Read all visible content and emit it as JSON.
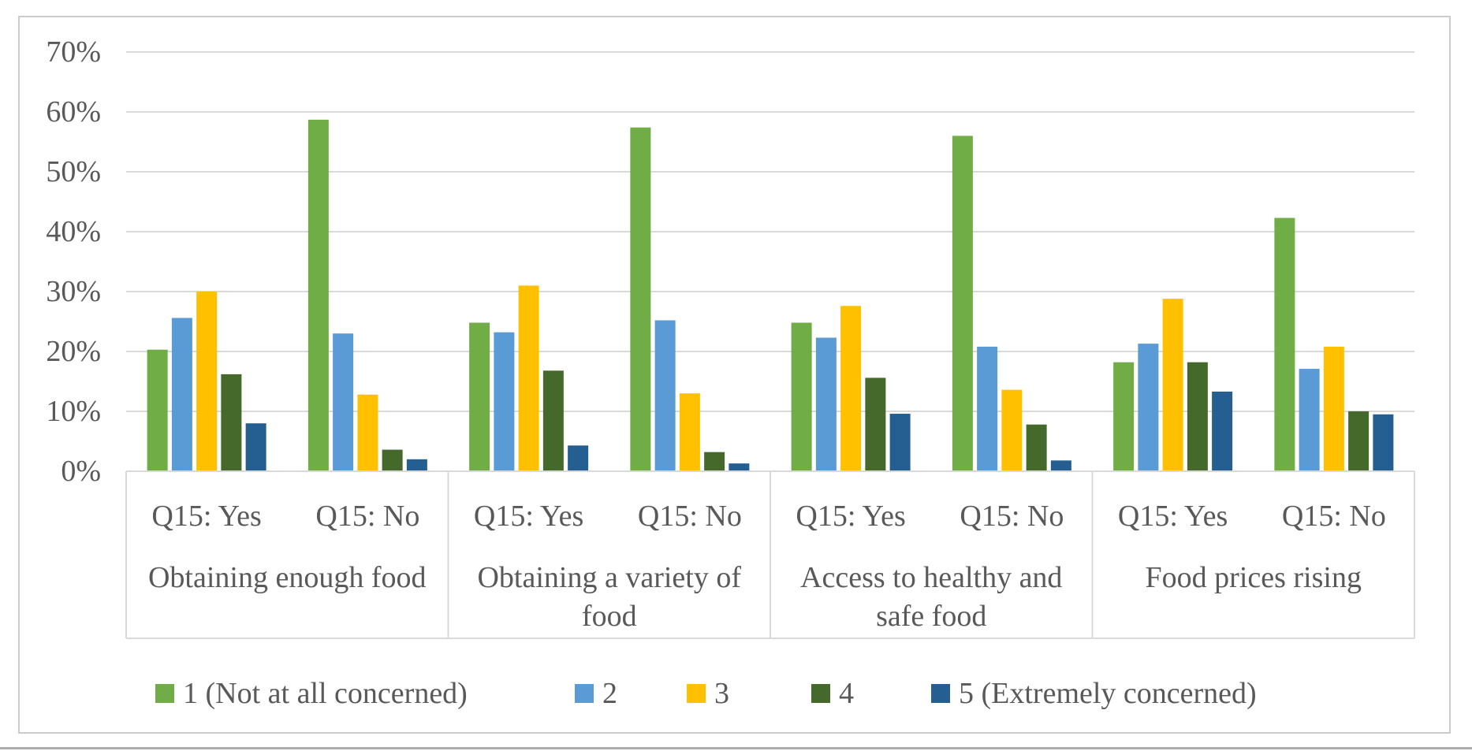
{
  "figure": {
    "kind": "grouped-bar-chart-figure"
  },
  "chart_data": {
    "type": "bar",
    "title": "",
    "xlabel": "",
    "ylabel": "",
    "y_axis": {
      "min": 0,
      "max": 70,
      "step": 10,
      "unit": "%",
      "ticks": [
        "0%",
        "10%",
        "20%",
        "30%",
        "40%",
        "50%",
        "60%",
        "70%"
      ]
    },
    "grid": true,
    "legend_position": "bottom",
    "groups": [
      {
        "label": "Obtaining enough food",
        "label_lines": [
          "Obtaining enough food"
        ]
      },
      {
        "label": "Obtaining a variety of food",
        "label_lines": [
          "Obtaining a variety of",
          "food"
        ]
      },
      {
        "label": "Access to healthy and safe food",
        "label_lines": [
          "Access to healthy and",
          "safe food"
        ]
      },
      {
        "label": "Food prices rising",
        "label_lines": [
          "Food prices rising"
        ]
      }
    ],
    "subgroups": [
      "Q15: Yes",
      "Q15: No"
    ],
    "series": [
      {
        "name": "1 (Not at all concerned)",
        "color": "#70AD47",
        "values": [
          [
            20.3,
            58.7
          ],
          [
            24.8,
            57.4
          ],
          [
            24.8,
            56.0
          ],
          [
            18.2,
            42.3
          ]
        ]
      },
      {
        "name": "2",
        "color": "#5B9BD5",
        "values": [
          [
            25.6,
            23.0
          ],
          [
            23.2,
            25.2
          ],
          [
            22.3,
            20.8
          ],
          [
            21.3,
            17.1
          ]
        ]
      },
      {
        "name": "3",
        "color": "#FFC000",
        "values": [
          [
            30.0,
            12.8
          ],
          [
            31.0,
            13.0
          ],
          [
            27.6,
            13.6
          ],
          [
            28.8,
            20.8
          ]
        ]
      },
      {
        "name": "4",
        "color": "#45682B",
        "values": [
          [
            16.2,
            3.6
          ],
          [
            16.8,
            3.2
          ],
          [
            15.6,
            7.8
          ],
          [
            18.2,
            10.0
          ]
        ]
      },
      {
        "name": "5 (Extremely concerned)",
        "color": "#255E91",
        "values": [
          [
            8.0,
            2.0
          ],
          [
            4.3,
            1.3
          ],
          [
            9.6,
            1.8
          ],
          [
            13.3,
            9.5
          ]
        ]
      }
    ],
    "colors": {
      "gridline": "#D9D9D9",
      "axis_text": "#595959",
      "frame_border": "#CBCBCB",
      "bottom_rule": "#ADADAD"
    }
  }
}
